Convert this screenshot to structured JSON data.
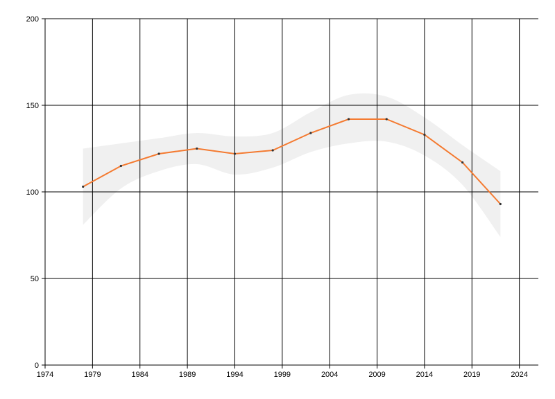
{
  "chart_data": {
    "type": "line",
    "x": [
      1978,
      1982,
      1986,
      1990,
      1994,
      1998,
      2002,
      2006,
      2010,
      2014,
      2018,
      2022
    ],
    "series": [
      {
        "values": [
          103,
          115,
          122,
          125,
          122,
          124,
          134,
          142,
          142,
          133,
          117,
          93
        ],
        "color": "#f47a30"
      }
    ],
    "band": {
      "upper": [
        125,
        128,
        131,
        134,
        132,
        134,
        146,
        156,
        155,
        143,
        127,
        112
      ],
      "lower": [
        81,
        102,
        112,
        116,
        110,
        114,
        123,
        128,
        129,
        121,
        104,
        74
      ],
      "color": "#f0f0f0"
    },
    "xlim": [
      1974,
      2026
    ],
    "ylim": [
      0,
      200
    ],
    "x_ticks": [
      1974,
      1979,
      1984,
      1989,
      1994,
      1999,
      2004,
      2009,
      2014,
      2019,
      2024
    ],
    "y_ticks": [
      0,
      50,
      100,
      150,
      200
    ],
    "grid": true,
    "marker_color": "#333333"
  }
}
